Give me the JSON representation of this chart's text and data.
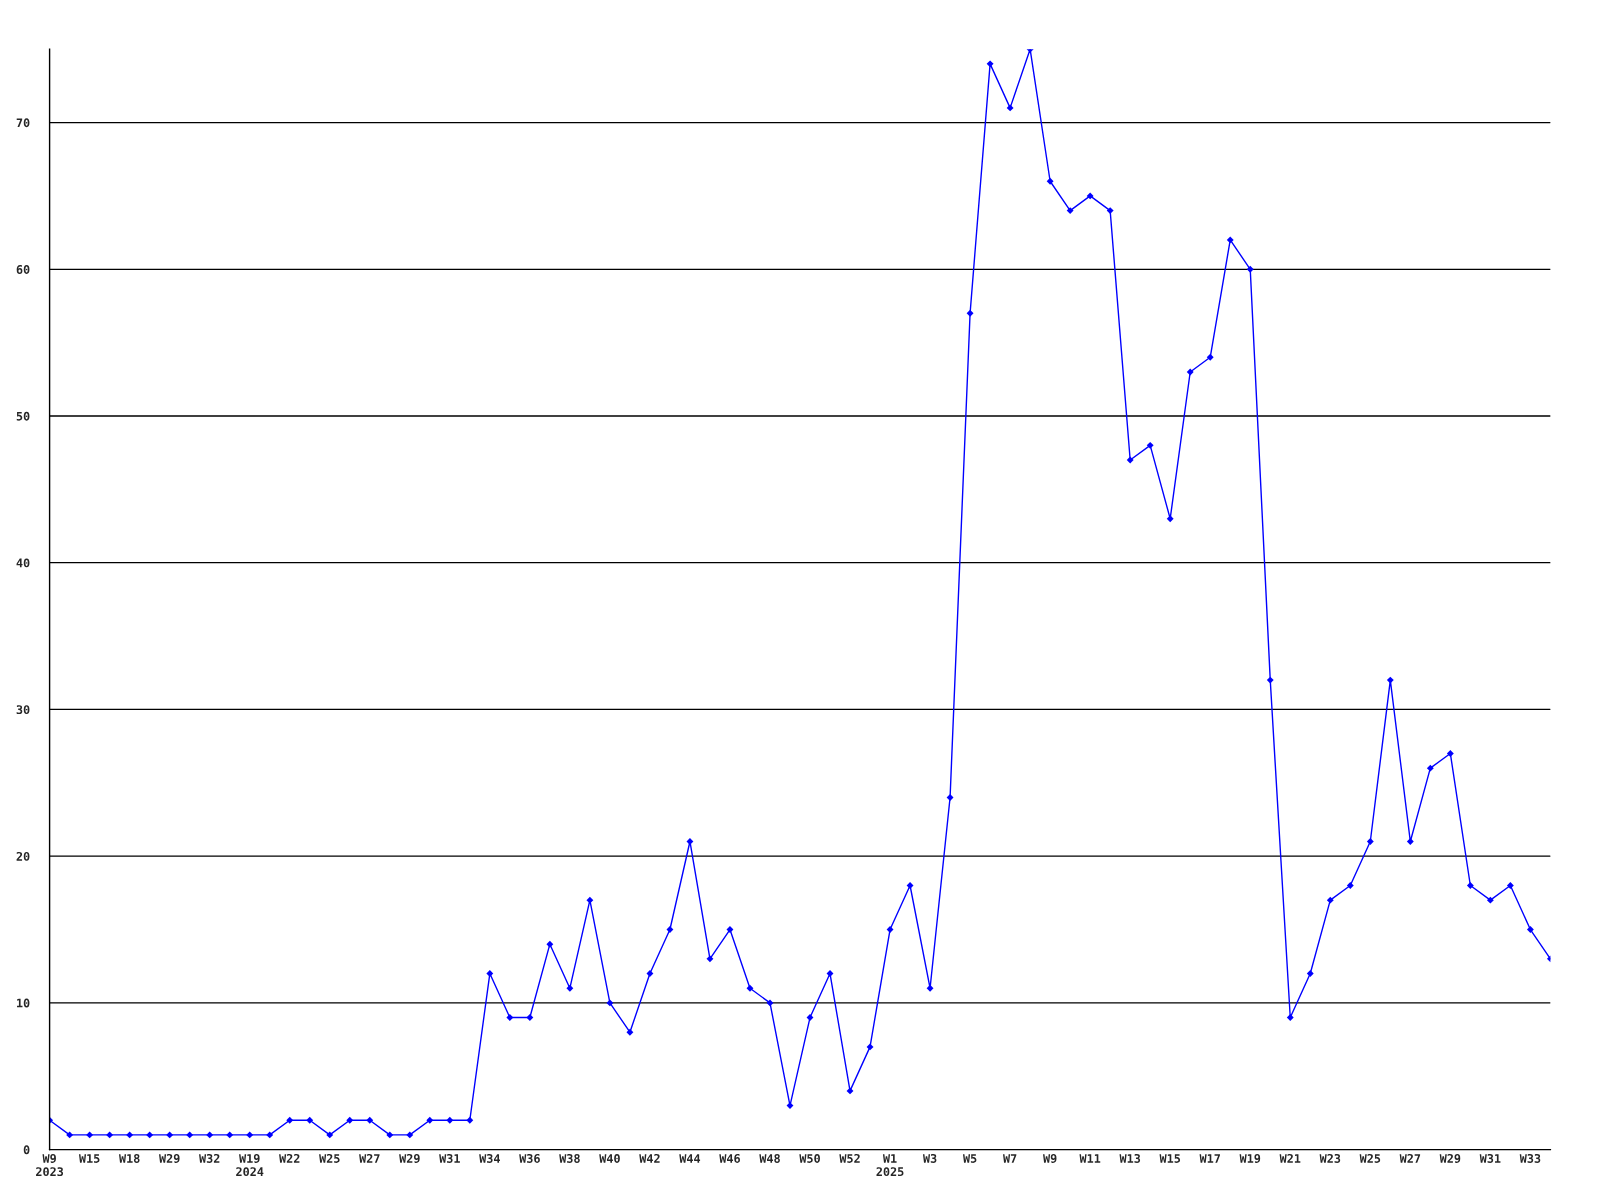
{
  "chart_data": {
    "type": "line",
    "categories": [
      "W9\n2023",
      null,
      "W15",
      null,
      "W18",
      null,
      "W29",
      null,
      "W32",
      null,
      "W19\n2024",
      null,
      "W22",
      null,
      "W25",
      null,
      "W27",
      null,
      "W29",
      null,
      "W31",
      null,
      "W34",
      null,
      "W36",
      null,
      "W38",
      null,
      "W40",
      null,
      "W42",
      null,
      "W44",
      null,
      "W46",
      null,
      "W48",
      null,
      "W50",
      null,
      "W52",
      null,
      "W1\n2025",
      null,
      "W3",
      null,
      "W5",
      null,
      "W7",
      null,
      "W9",
      null,
      "W11",
      null,
      "W13",
      null,
      "W15",
      null,
      "W17",
      null,
      "W19",
      null,
      "W21",
      null,
      "W23",
      null,
      "W25",
      null,
      "W27",
      null,
      "W29",
      null,
      "W31",
      null,
      "W33",
      null
    ],
    "series": [
      {
        "color": "#0000ff",
        "values": [
          2,
          1,
          1,
          1,
          1,
          1,
          1,
          1,
          1,
          1,
          1,
          1,
          2,
          2,
          1,
          2,
          2,
          1,
          1,
          2,
          2,
          2,
          12,
          9,
          9,
          14,
          11,
          17,
          10,
          8,
          12,
          15,
          21,
          13,
          15,
          11,
          10,
          3,
          9,
          12,
          4,
          7,
          15,
          18,
          11,
          24,
          57,
          74,
          71,
          75,
          66,
          64,
          65,
          64,
          47,
          48,
          43,
          53,
          54,
          62,
          60,
          32,
          9,
          12,
          17,
          18,
          21,
          32,
          21,
          26,
          27,
          18,
          17,
          18,
          15,
          13
        ]
      }
    ],
    "ylim": [
      0,
      75
    ],
    "yticks": [
      0,
      10,
      20,
      30,
      40,
      50,
      60,
      70
    ],
    "grid": "y",
    "marker": "diamond",
    "line_style": "solid",
    "legend": false
  }
}
